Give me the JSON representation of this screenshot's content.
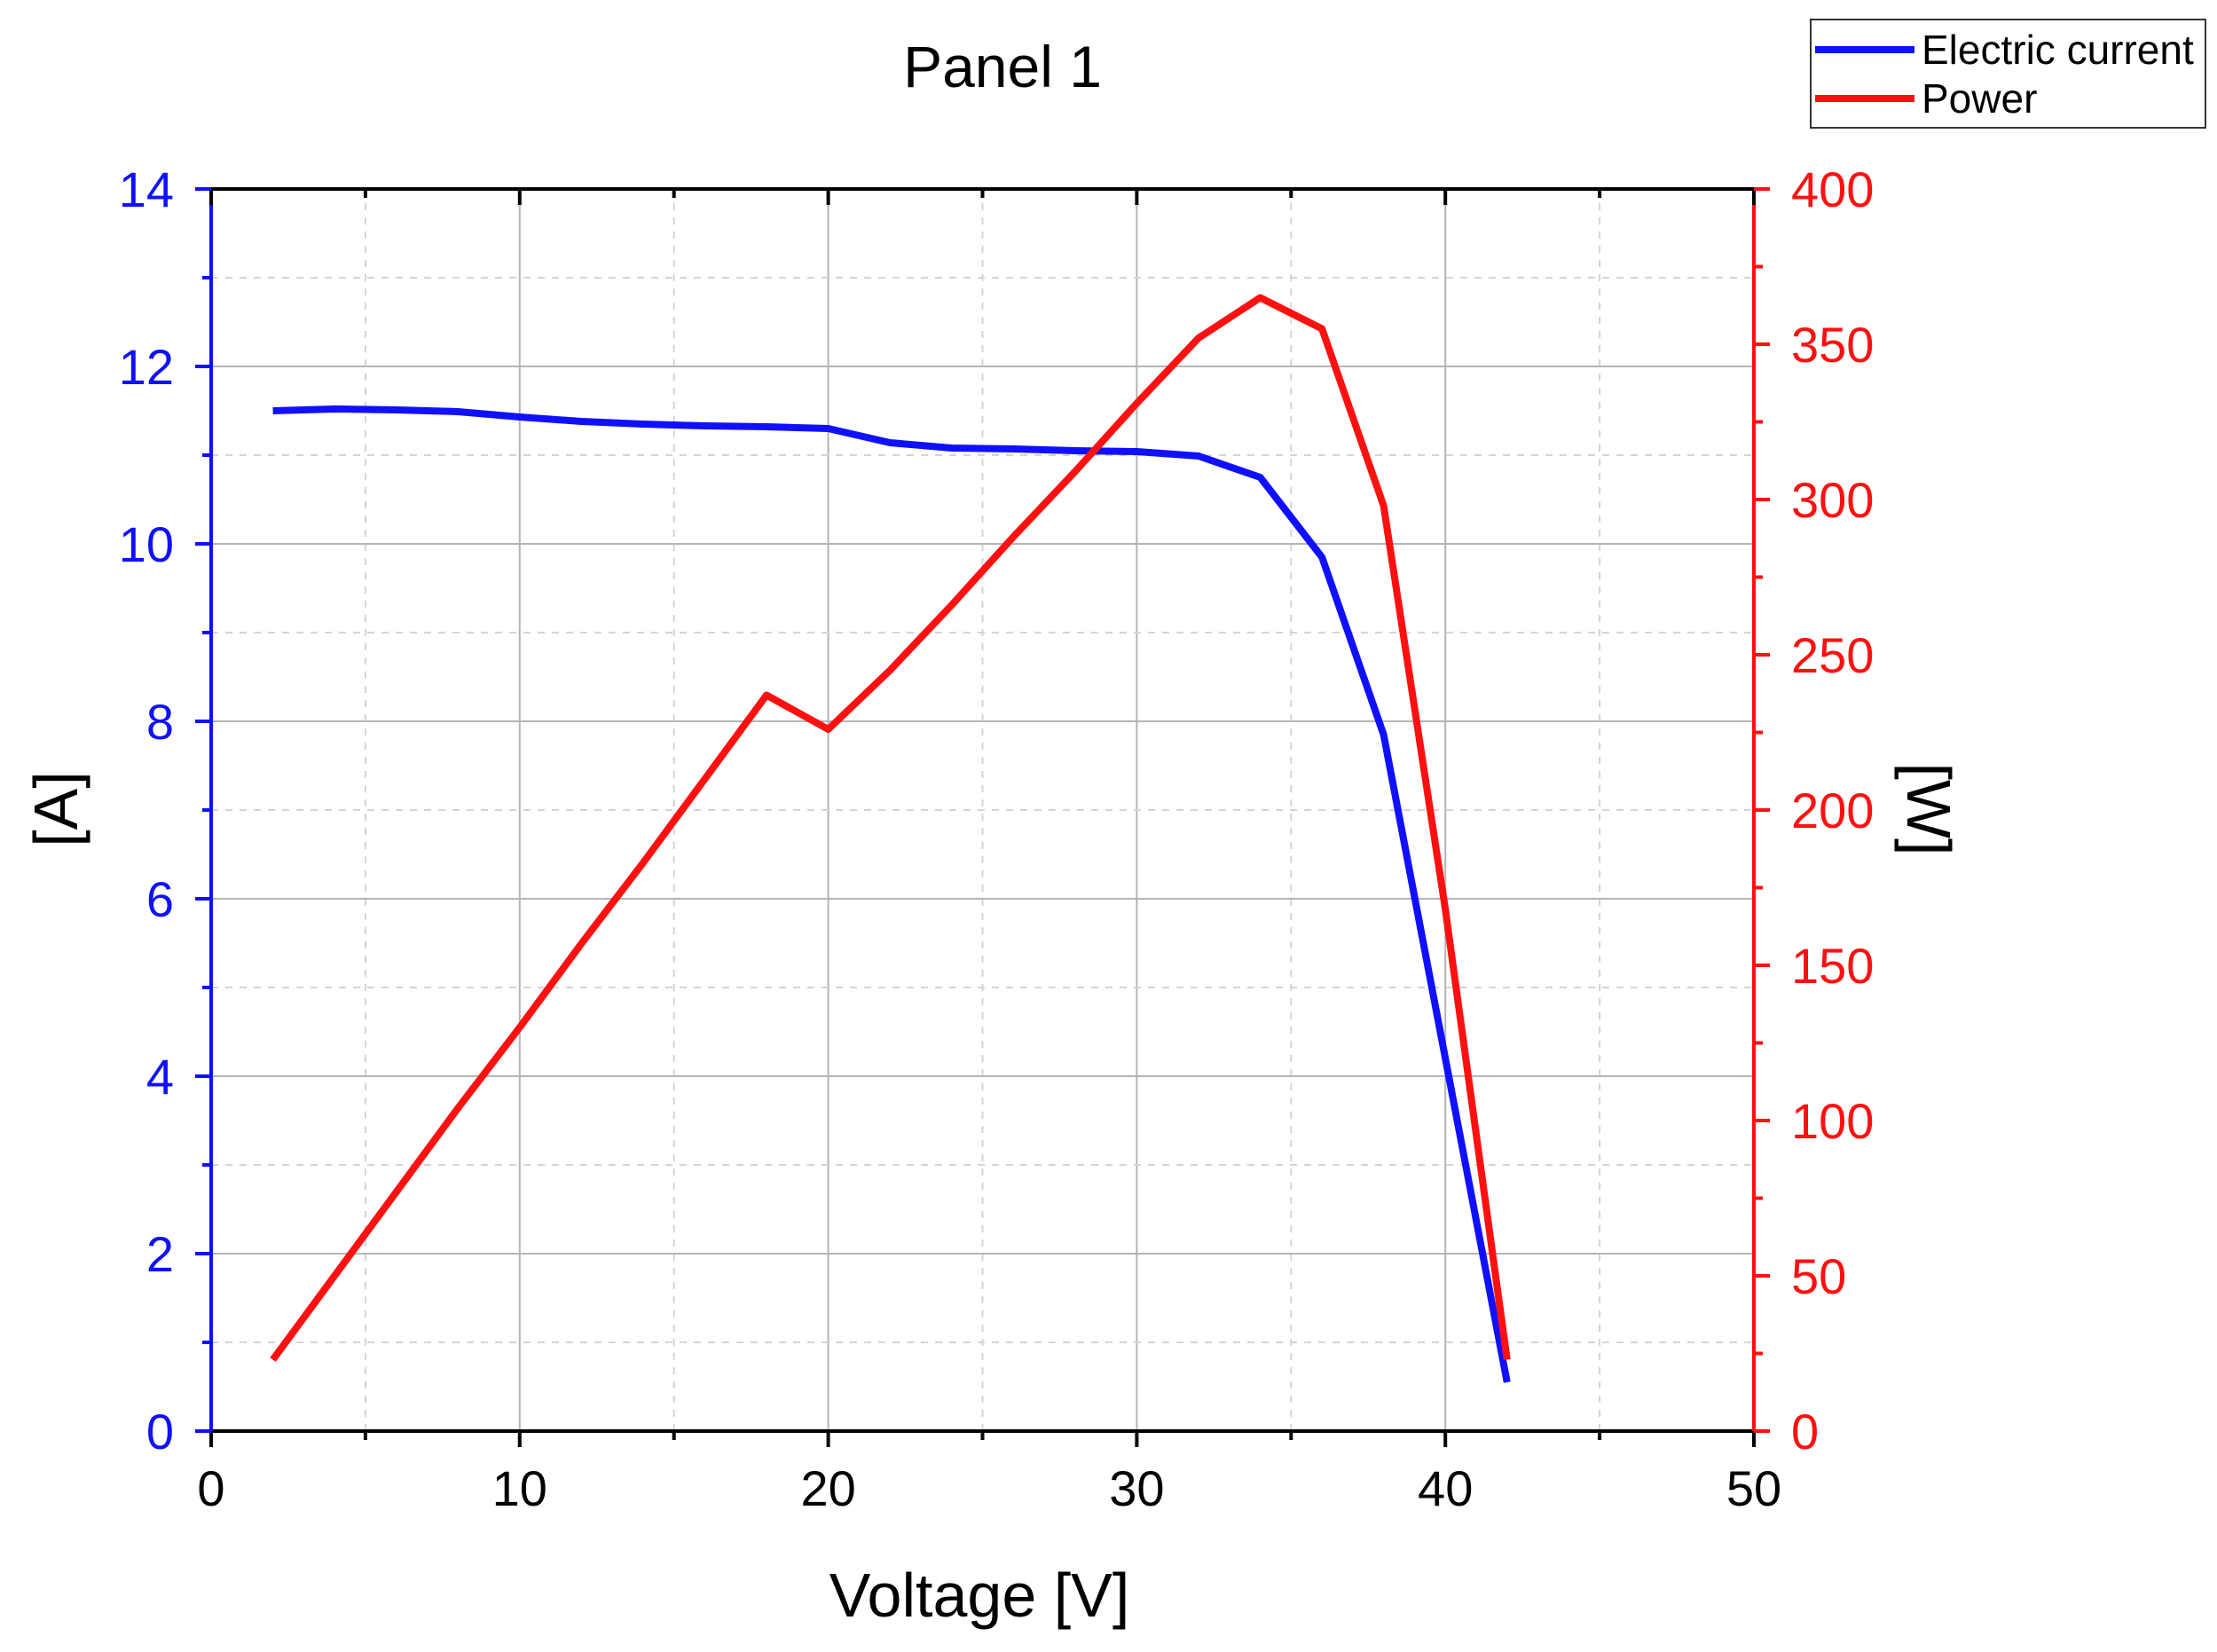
{
  "chart_data": {
    "type": "line",
    "title": "Panel 1",
    "xlabel": "Voltage [V]",
    "ylabel_left": "[A]",
    "ylabel_right": "[W]",
    "xlim": [
      0,
      50
    ],
    "ylim_left": [
      0,
      14
    ],
    "ylim_right": [
      0,
      400
    ],
    "x_ticks": [
      "0",
      "10",
      "20",
      "30",
      "40",
      "50"
    ],
    "y_left_ticks": [
      "0",
      "2",
      "4",
      "6",
      "8",
      "10",
      "12",
      "14"
    ],
    "y_right_ticks": [
      "0",
      "50",
      "100",
      "150",
      "200",
      "250",
      "300",
      "350",
      "400"
    ],
    "grid": true,
    "legend_position": "top-right",
    "colors": {
      "current": "#1010ff",
      "power": "#ff1010",
      "axis": "#000000"
    },
    "series": [
      {
        "name": "Electric current",
        "axis": "left",
        "color": "#1010ff",
        "x": [
          2,
          4,
          6,
          8,
          10,
          12,
          14,
          16,
          18,
          20,
          22,
          24,
          26,
          28,
          30,
          32,
          34,
          36,
          38,
          40,
          42
        ],
        "values": [
          11.5,
          11.52,
          11.51,
          11.49,
          11.43,
          11.38,
          11.35,
          11.33,
          11.32,
          11.3,
          11.14,
          11.08,
          11.07,
          11.05,
          11.04,
          10.99,
          10.75,
          9.85,
          7.85,
          4.2,
          0.55
        ]
      },
      {
        "name": "Power",
        "axis": "right",
        "color": "#ff1010",
        "x": [
          2,
          4,
          6,
          8,
          10,
          12,
          14,
          16,
          18,
          20,
          22,
          24,
          26,
          28,
          30,
          32,
          34,
          36,
          38,
          40,
          42
        ],
        "values": [
          23,
          50,
          77,
          104,
          130,
          157,
          183,
          210,
          237,
          226,
          245,
          266,
          288,
          309,
          331,
          352,
          365,
          355,
          298,
          168,
          23
        ]
      }
    ]
  }
}
